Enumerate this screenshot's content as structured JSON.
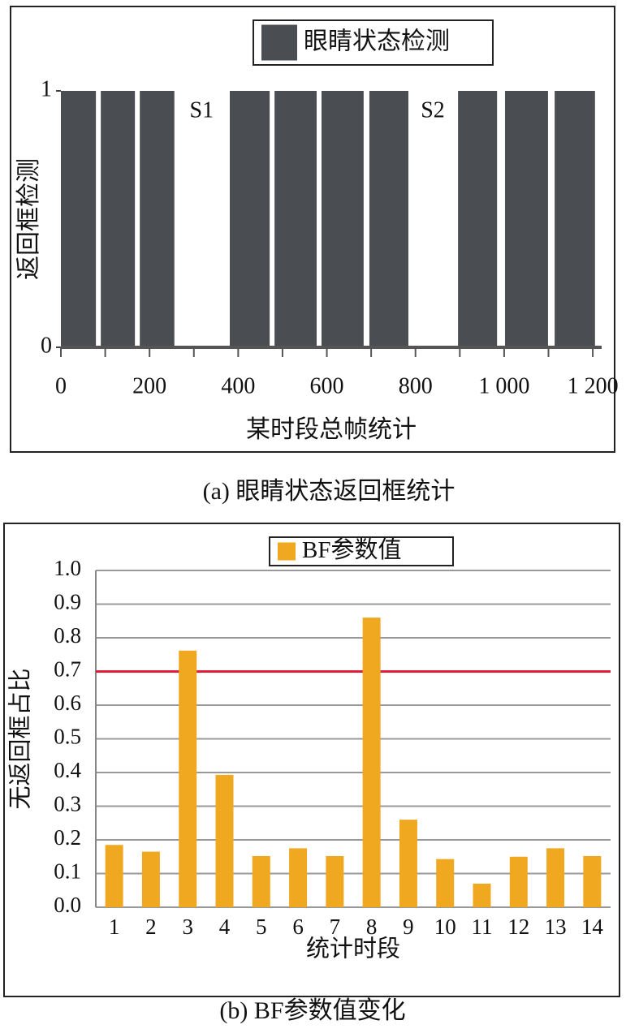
{
  "chart_data": [
    {
      "type": "bar",
      "y_label": "返回框检测",
      "x_label": "某时段总帧统计",
      "caption": "(a) 眼睛状态返回框统计",
      "series": [
        {
          "name": "眼睛状态检测",
          "color": "#4a4d52",
          "x_start": [
            0,
            90,
            178,
            381,
            482,
            588,
            696,
            896,
            1002,
            1114
          ],
          "x_end": [
            79,
            167,
            256,
            471,
            577,
            683,
            784,
            984,
            1099,
            1205
          ],
          "values": [
            1,
            1,
            1,
            1,
            1,
            1,
            1,
            1,
            1,
            1
          ]
        }
      ],
      "annotations": [
        {
          "text": "S1",
          "x_start": 258,
          "x_end": 377
        },
        {
          "text": "S2",
          "x_start": 786,
          "x_end": 892
        }
      ],
      "xlim": [
        0,
        1220
      ],
      "xticks": [
        0,
        200,
        400,
        600,
        800,
        {
          "value": 1000,
          "label": "1 000"
        },
        {
          "value": 1200,
          "label": "1 200"
        }
      ],
      "x_minor_ticks": [
        100,
        300,
        500,
        700,
        900,
        1100
      ],
      "ylim": [
        0,
        1
      ],
      "yticks": [
        0,
        1
      ],
      "grid": false,
      "legend": "top"
    },
    {
      "type": "bar",
      "y_label": "无返回框占比",
      "x_label": "统计时段",
      "caption": "(b) BF参数值变化",
      "categories": [
        "1",
        "2",
        "3",
        "4",
        "5",
        "6",
        "7",
        "8",
        "9",
        "10",
        "11",
        "12",
        "13",
        "14"
      ],
      "series": [
        {
          "name": "BF参数值",
          "color": "#f0a820",
          "values": [
            0.185,
            0.165,
            0.762,
            0.393,
            0.152,
            0.175,
            0.152,
            0.86,
            0.26,
            0.143,
            0.07,
            0.15,
            0.175,
            0.152
          ]
        }
      ],
      "reference_line": {
        "value": 0.7,
        "color": "#e0203a"
      },
      "ylim": [
        0,
        1
      ],
      "yticks": [
        {
          "value": 0,
          "label": "0.0"
        },
        0.1,
        0.2,
        0.3,
        0.4,
        0.5,
        0.6,
        0.7,
        0.8,
        0.9,
        {
          "value": 1,
          "label": "1.0"
        }
      ],
      "grid": true,
      "legend": "top"
    }
  ]
}
